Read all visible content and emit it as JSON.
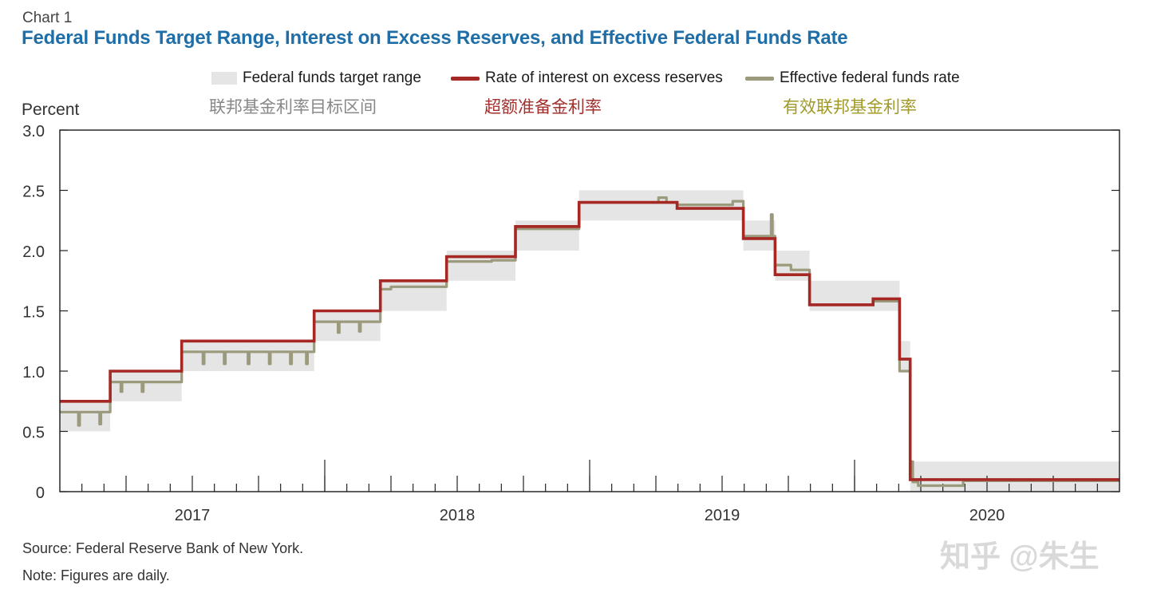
{
  "header": {
    "chart_number": "Chart 1",
    "title": "Federal Funds Target Range, Interest on Excess Reserves, and Effective Federal Funds Rate"
  },
  "legend": {
    "range_label": "Federal funds target range",
    "ior_label": "Rate of interest on excess reserves",
    "effr_label": "Effective federal funds rate",
    "range_label_cn": "联邦基金利率目标区间",
    "ior_label_cn": "超额准备金利率",
    "effr_label_cn": "有效联邦基金利率"
  },
  "colors": {
    "range": "#e5e5e5",
    "ior": "#a52824",
    "effr": "#9c9a7d",
    "title": "#1f6ea7"
  },
  "footer": {
    "source": "Source: Federal Reserve Bank of New York.",
    "note": "Note: Figures are daily.",
    "watermark": "知乎 @朱生"
  },
  "chart_data": {
    "type": "line",
    "title": "Federal Funds Target Range, Interest on Excess Reserves, and Effective Federal Funds Rate",
    "xlabel": "",
    "ylabel": "Percent",
    "xlim": [
      2016.5,
      2020.5
    ],
    "ylim": [
      0,
      3.0
    ],
    "y_ticks": [
      0,
      0.5,
      1.0,
      1.5,
      2.0,
      2.5,
      3.0
    ],
    "y_tick_labels": [
      "0",
      "0.5",
      "1.0",
      "1.5",
      "2.0",
      "2.5",
      "3.0"
    ],
    "x_tick_labels": [
      {
        "label": "2017",
        "x": 2017.0
      },
      {
        "label": "2018",
        "x": 2018.0
      },
      {
        "label": "2019",
        "x": 2019.0
      },
      {
        "label": "2020",
        "x": 2020.0
      }
    ],
    "year_boundaries": [
      2017.5,
      2018.5,
      2019.5
    ],
    "target_range": [
      {
        "start": 2016.5,
        "end": 2016.69,
        "low": 0.5,
        "high": 0.75
      },
      {
        "start": 2016.69,
        "end": 2016.96,
        "low": 0.75,
        "high": 1.0
      },
      {
        "start": 2016.96,
        "end": 2017.46,
        "low": 1.0,
        "high": 1.25
      },
      {
        "start": 2017.46,
        "end": 2017.71,
        "low": 1.25,
        "high": 1.5
      },
      {
        "start": 2017.71,
        "end": 2017.96,
        "low": 1.5,
        "high": 1.75
      },
      {
        "start": 2017.96,
        "end": 2018.22,
        "low": 1.75,
        "high": 2.0
      },
      {
        "start": 2018.22,
        "end": 2018.46,
        "low": 2.0,
        "high": 2.25
      },
      {
        "start": 2018.46,
        "end": 2019.08,
        "low": 2.25,
        "high": 2.5
      },
      {
        "start": 2019.08,
        "end": 2019.2,
        "low": 2.0,
        "high": 2.25
      },
      {
        "start": 2019.2,
        "end": 2019.33,
        "low": 1.75,
        "high": 2.0
      },
      {
        "start": 2019.33,
        "end": 2019.67,
        "low": 1.5,
        "high": 1.75
      },
      {
        "start": 2019.67,
        "end": 2019.71,
        "low": 1.0,
        "high": 1.25
      },
      {
        "start": 2019.71,
        "end": 2020.5,
        "low": 0.0,
        "high": 0.25
      }
    ],
    "series": [
      {
        "name": "Rate of interest on excess reserves",
        "step": true,
        "points": [
          [
            2016.5,
            0.75
          ],
          [
            2016.69,
            1.0
          ],
          [
            2016.96,
            1.25
          ],
          [
            2017.46,
            1.5
          ],
          [
            2017.71,
            1.75
          ],
          [
            2017.96,
            1.95
          ],
          [
            2018.22,
            2.2
          ],
          [
            2018.46,
            2.4
          ],
          [
            2018.83,
            2.35
          ],
          [
            2019.08,
            2.1
          ],
          [
            2019.2,
            1.8
          ],
          [
            2019.33,
            1.55
          ],
          [
            2019.57,
            1.6
          ],
          [
            2019.67,
            1.1
          ],
          [
            2019.71,
            0.1
          ],
          [
            2020.5,
            0.1
          ]
        ]
      },
      {
        "name": "Effective federal funds rate",
        "step": true,
        "points": [
          [
            2016.5,
            0.66
          ],
          [
            2016.57,
            0.55
          ],
          [
            2016.575,
            0.66
          ],
          [
            2016.65,
            0.56
          ],
          [
            2016.655,
            0.66
          ],
          [
            2016.69,
            0.91
          ],
          [
            2016.73,
            0.83
          ],
          [
            2016.735,
            0.91
          ],
          [
            2016.81,
            0.83
          ],
          [
            2016.815,
            0.91
          ],
          [
            2016.96,
            1.16
          ],
          [
            2017.04,
            1.06
          ],
          [
            2017.045,
            1.16
          ],
          [
            2017.12,
            1.06
          ],
          [
            2017.125,
            1.16
          ],
          [
            2017.21,
            1.06
          ],
          [
            2017.215,
            1.16
          ],
          [
            2017.29,
            1.06
          ],
          [
            2017.295,
            1.16
          ],
          [
            2017.37,
            1.06
          ],
          [
            2017.375,
            1.16
          ],
          [
            2017.43,
            1.06
          ],
          [
            2017.435,
            1.16
          ],
          [
            2017.46,
            1.41
          ],
          [
            2017.55,
            1.32
          ],
          [
            2017.555,
            1.41
          ],
          [
            2017.63,
            1.33
          ],
          [
            2017.635,
            1.41
          ],
          [
            2017.71,
            1.68
          ],
          [
            2017.75,
            1.7
          ],
          [
            2017.96,
            1.91
          ],
          [
            2018.13,
            1.92
          ],
          [
            2018.22,
            2.18
          ],
          [
            2018.46,
            2.4
          ],
          [
            2018.76,
            2.44
          ],
          [
            2018.79,
            2.4
          ],
          [
            2018.83,
            2.38
          ],
          [
            2019.04,
            2.41
          ],
          [
            2019.08,
            2.12
          ],
          [
            2019.185,
            2.3
          ],
          [
            2019.19,
            2.12
          ],
          [
            2019.2,
            1.88
          ],
          [
            2019.26,
            1.84
          ],
          [
            2019.33,
            1.55
          ],
          [
            2019.57,
            1.58
          ],
          [
            2019.67,
            1.0
          ],
          [
            2019.71,
            0.25
          ],
          [
            2019.72,
            0.08
          ],
          [
            2019.74,
            0.05
          ],
          [
            2019.91,
            0.09
          ],
          [
            2020.5,
            0.09
          ]
        ]
      }
    ]
  }
}
